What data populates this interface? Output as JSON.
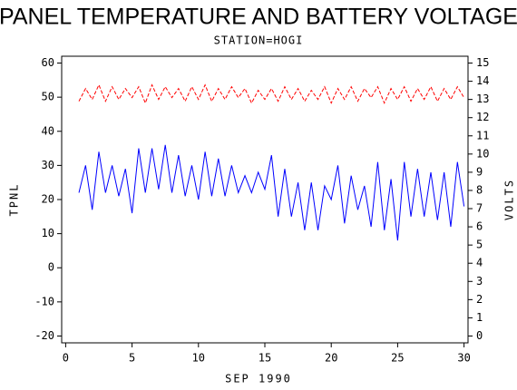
{
  "chart_data": {
    "type": "line",
    "title": "PANEL TEMPERATURE AND BATTERY VOLTAGE",
    "subtitle": "STATION=HOGI",
    "x_label": "SEP 1990",
    "y_label": "TPNL",
    "y2_label": "VOLTS",
    "x": [
      1,
      1.5,
      2,
      2.5,
      3,
      3.5,
      4,
      4.5,
      5,
      5.5,
      6,
      6.5,
      7,
      7.5,
      8,
      8.5,
      9,
      9.5,
      10,
      10.5,
      11,
      11.5,
      12,
      12.5,
      13,
      13.5,
      14,
      14.5,
      15,
      15.5,
      16,
      16.5,
      17,
      17.5,
      18,
      18.5,
      19,
      19.5,
      20,
      20.5,
      21,
      21.5,
      22,
      22.5,
      23,
      23.5,
      24,
      24.5,
      25,
      25.5,
      26,
      26.5,
      27,
      27.5,
      28,
      28.5,
      29,
      29.5,
      30
    ],
    "series": [
      {
        "name": "TPNL",
        "color": "#0000ff",
        "line_style": "solid",
        "axis": "y",
        "values": [
          22,
          30,
          17,
          34,
          22,
          30,
          21,
          29,
          16,
          35,
          22,
          35,
          23,
          36,
          22,
          33,
          21,
          30,
          20,
          34,
          21,
          32,
          21,
          30,
          22,
          27,
          22,
          28,
          23,
          33,
          15,
          29,
          15,
          25,
          11,
          25,
          11,
          24,
          20,
          30,
          13,
          27,
          17,
          24,
          12,
          31,
          11,
          26,
          8,
          31,
          15,
          29,
          15,
          28,
          14,
          28,
          12,
          31,
          18
        ]
      },
      {
        "name": "VOLTS",
        "color": "#ff0000",
        "line_style": "dashed",
        "axis": "y2",
        "values": [
          12.9,
          13.6,
          13.0,
          13.8,
          12.9,
          13.7,
          13.0,
          13.6,
          13.1,
          13.7,
          12.8,
          13.8,
          13.0,
          13.7,
          13.1,
          13.6,
          12.9,
          13.7,
          13.0,
          13.8,
          12.9,
          13.6,
          13.0,
          13.7,
          13.1,
          13.6,
          12.8,
          13.5,
          13.0,
          13.6,
          12.9,
          13.7,
          13.0,
          13.6,
          12.9,
          13.5,
          13.0,
          13.7,
          12.8,
          13.6,
          13.0,
          13.7,
          12.9,
          13.6,
          13.1,
          13.7,
          12.8,
          13.6,
          13.0,
          13.7,
          12.9,
          13.6,
          13.0,
          13.7,
          12.9,
          13.6,
          13.0,
          13.7,
          13.1
        ]
      }
    ],
    "xlim": [
      -0.3,
      30.3
    ],
    "xticks": [
      0,
      5,
      10,
      15,
      20,
      25,
      30
    ],
    "ylim": [
      -22,
      62
    ],
    "yticks": [
      -20,
      -10,
      0,
      10,
      20,
      30,
      40,
      50,
      60
    ],
    "y2lim": [
      -0.375,
      15.375
    ],
    "y2ticks": [
      0,
      1,
      2,
      3,
      4,
      5,
      6,
      7,
      8,
      9,
      10,
      11,
      12,
      13,
      14,
      15
    ]
  }
}
